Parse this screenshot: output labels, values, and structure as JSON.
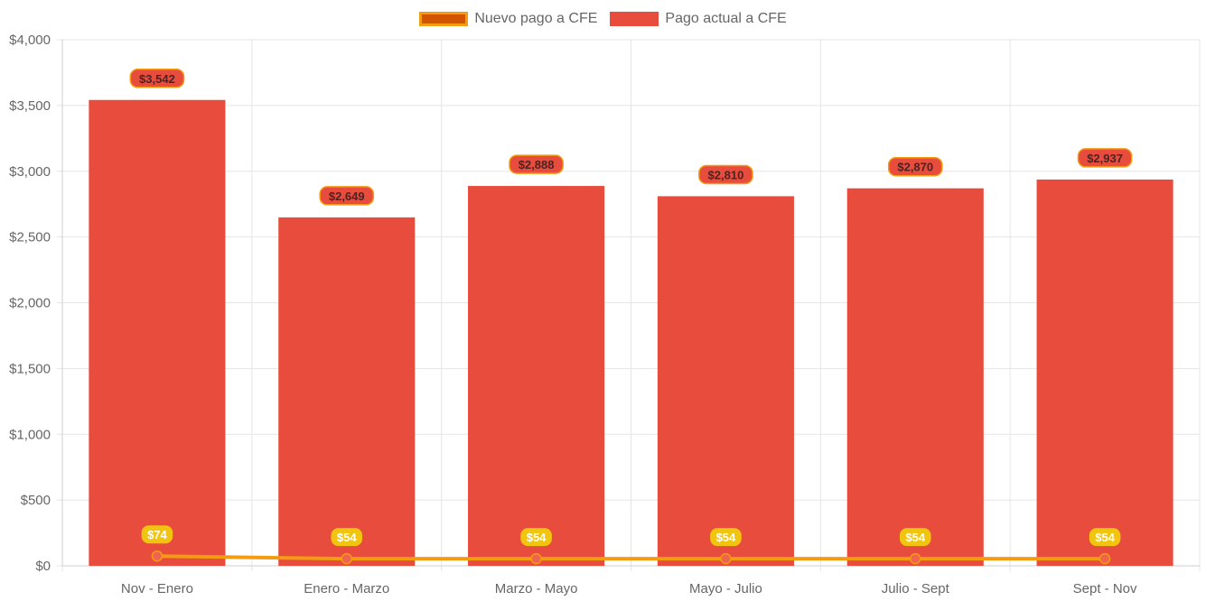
{
  "legend": {
    "line_label": "Nuevo pago a CFE",
    "bar_label": "Pago actual a CFE"
  },
  "colors": {
    "bar": "#e74c3c",
    "line": "#f39c12",
    "line_swatch_fill": "#d35400",
    "line_point": "#f06350",
    "bar_label_text": "#4a2424",
    "line_label_fill": "#f1c40f",
    "grid": "#e5e5e5",
    "axis_text": "#666666"
  },
  "chart_data": {
    "type": "bar",
    "categories": [
      "Nov - Enero",
      "Enero - Marzo",
      "Marzo - Mayo",
      "Mayo - Julio",
      "Julio - Sept",
      "Sept - Nov"
    ],
    "series": [
      {
        "name": "Pago actual a CFE",
        "type": "bar",
        "values": [
          3542,
          2649,
          2888,
          2810,
          2870,
          2937
        ],
        "labels": [
          "$3,542",
          "$2,649",
          "$2,888",
          "$2,810",
          "$2,870",
          "$2,937"
        ]
      },
      {
        "name": "Nuevo pago a CFE",
        "type": "line",
        "values": [
          74,
          54,
          54,
          54,
          54,
          54
        ],
        "labels": [
          "$74",
          "$54",
          "$54",
          "$54",
          "$54",
          "$54"
        ]
      }
    ],
    "ylim": [
      0,
      4000
    ],
    "yticks": [
      0,
      500,
      1000,
      1500,
      2000,
      2500,
      3000,
      3500,
      4000
    ],
    "ytick_labels": [
      "$0",
      "$500",
      "$1,000",
      "$1,500",
      "$2,000",
      "$2,500",
      "$3,000",
      "$3,500",
      "$4,000"
    ],
    "grid": true,
    "legend_position": "top-center"
  }
}
